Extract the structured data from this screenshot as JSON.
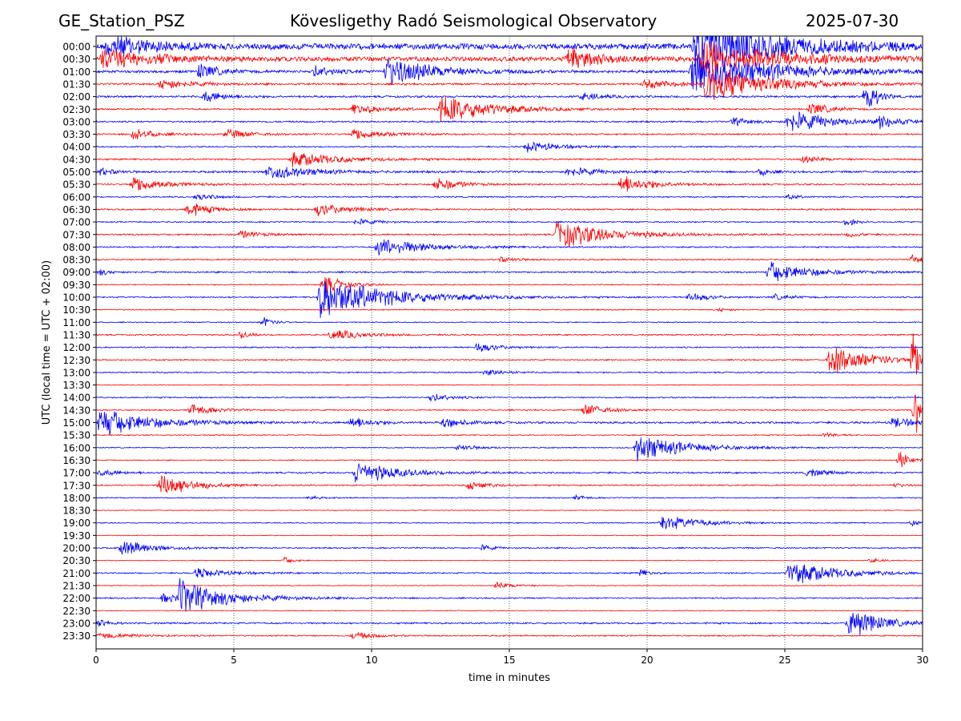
{
  "header": {
    "station": "GE_Station_PSZ",
    "observatory": "Kövesligethy Radó Seismological Observatory",
    "date": "2025-07-30"
  },
  "chart_data": {
    "type": "line",
    "title": "Kövesligethy Radó Seismological Observatory",
    "xlabel": "time in minutes",
    "ylabel": "UTC (local time = UTC + 02:00)",
    "xlim": [
      0,
      30
    ],
    "xticks": [
      "0",
      "5",
      "10",
      "15",
      "20",
      "25",
      "30"
    ],
    "grid": "vertical dotted lines at each x tick",
    "colors": {
      "odd_row": "#0000ff",
      "even_row": "#ff0000"
    },
    "rows": [
      {
        "label": "00:00",
        "color": "blue",
        "amp": 0.45,
        "events": [
          {
            "t": 0.3,
            "a": 2.0,
            "d": 4
          },
          {
            "t": 21.6,
            "a": 4.0,
            "d": 8.4
          }
        ]
      },
      {
        "label": "00:30",
        "color": "red",
        "amp": 0.35,
        "events": [
          {
            "t": 0.1,
            "a": 1.6,
            "d": 5
          },
          {
            "t": 17.0,
            "a": 1.8,
            "d": 3
          },
          {
            "t": 21.8,
            "a": 2.5,
            "d": 8
          }
        ]
      },
      {
        "label": "01:00",
        "color": "blue",
        "amp": 0.2,
        "events": [
          {
            "t": 3.6,
            "a": 1.2,
            "d": 2
          },
          {
            "t": 7.8,
            "a": 0.8,
            "d": 2
          },
          {
            "t": 10.4,
            "a": 2.2,
            "d": 5
          },
          {
            "t": 21.5,
            "a": 3.2,
            "d": 8
          }
        ]
      },
      {
        "label": "01:30",
        "color": "red",
        "amp": 0.15,
        "events": [
          {
            "t": 2.2,
            "a": 0.8,
            "d": 3
          },
          {
            "t": 19.8,
            "a": 0.7,
            "d": 3
          },
          {
            "t": 22.0,
            "a": 3.0,
            "d": 6
          }
        ]
      },
      {
        "label": "02:00",
        "color": "blue",
        "amp": 0.15,
        "events": [
          {
            "t": 3.8,
            "a": 0.9,
            "d": 2
          },
          {
            "t": 17.5,
            "a": 0.6,
            "d": 2
          },
          {
            "t": 27.8,
            "a": 3.0,
            "d": 1
          }
        ]
      },
      {
        "label": "02:30",
        "color": "red",
        "amp": 0.12,
        "events": [
          {
            "t": 9.2,
            "a": 0.8,
            "d": 3
          },
          {
            "t": 12.4,
            "a": 2.2,
            "d": 5
          },
          {
            "t": 25.8,
            "a": 1.0,
            "d": 2
          }
        ]
      },
      {
        "label": "03:00",
        "color": "blue",
        "amp": 0.12,
        "events": [
          {
            "t": 23.0,
            "a": 0.6,
            "d": 2
          },
          {
            "t": 25.0,
            "a": 1.8,
            "d": 4
          },
          {
            "t": 28.3,
            "a": 1.0,
            "d": 2
          }
        ]
      },
      {
        "label": "03:30",
        "color": "red",
        "amp": 0.12,
        "events": [
          {
            "t": 1.2,
            "a": 0.9,
            "d": 2
          },
          {
            "t": 4.6,
            "a": 0.8,
            "d": 2
          },
          {
            "t": 9.2,
            "a": 0.9,
            "d": 3
          }
        ]
      },
      {
        "label": "04:00",
        "color": "blue",
        "amp": 0.1,
        "events": [
          {
            "t": 15.5,
            "a": 0.9,
            "d": 3
          }
        ]
      },
      {
        "label": "04:30",
        "color": "red",
        "amp": 0.12,
        "events": [
          {
            "t": 7.0,
            "a": 1.1,
            "d": 5
          },
          {
            "t": 25.5,
            "a": 0.5,
            "d": 2
          }
        ]
      },
      {
        "label": "05:00",
        "color": "blue",
        "amp": 0.15,
        "events": [
          {
            "t": 0.0,
            "a": 0.6,
            "d": 1.5
          },
          {
            "t": 6.1,
            "a": 1.2,
            "d": 4
          },
          {
            "t": 17.0,
            "a": 0.7,
            "d": 3
          },
          {
            "t": 24.0,
            "a": 0.6,
            "d": 1
          }
        ]
      },
      {
        "label": "05:30",
        "color": "red",
        "amp": 0.12,
        "events": [
          {
            "t": 1.2,
            "a": 1.3,
            "d": 3
          },
          {
            "t": 12.2,
            "a": 1.2,
            "d": 2
          },
          {
            "t": 18.9,
            "a": 1.4,
            "d": 3
          }
        ]
      },
      {
        "label": "06:00",
        "color": "blue",
        "amp": 0.1,
        "events": [
          {
            "t": 3.5,
            "a": 0.5,
            "d": 2
          },
          {
            "t": 25.0,
            "a": 0.4,
            "d": 1
          }
        ]
      },
      {
        "label": "06:30",
        "color": "red",
        "amp": 0.12,
        "events": [
          {
            "t": 3.2,
            "a": 1.3,
            "d": 2
          },
          {
            "t": 7.9,
            "a": 1.0,
            "d": 3
          }
        ]
      },
      {
        "label": "07:00",
        "color": "blue",
        "amp": 0.1,
        "events": [
          {
            "t": 9.3,
            "a": 0.5,
            "d": 2
          },
          {
            "t": 27.1,
            "a": 0.6,
            "d": 1
          }
        ]
      },
      {
        "label": "07:30",
        "color": "red",
        "amp": 0.12,
        "events": [
          {
            "t": 5.1,
            "a": 0.6,
            "d": 2
          },
          {
            "t": 16.6,
            "a": 2.2,
            "d": 5
          },
          {
            "t": 27.2,
            "a": 0.5,
            "d": 1
          }
        ]
      },
      {
        "label": "08:00",
        "color": "blue",
        "amp": 0.1,
        "events": [
          {
            "t": 10.1,
            "a": 1.4,
            "d": 5
          }
        ]
      },
      {
        "label": "08:30",
        "color": "red",
        "amp": 0.1,
        "events": [
          {
            "t": 14.5,
            "a": 0.4,
            "d": 2
          },
          {
            "t": 29.5,
            "a": 0.8,
            "d": 1
          }
        ]
      },
      {
        "label": "09:00",
        "color": "blue",
        "amp": 0.12,
        "events": [
          {
            "t": 0.0,
            "a": 0.5,
            "d": 1
          },
          {
            "t": 24.3,
            "a": 1.6,
            "d": 4
          }
        ]
      },
      {
        "label": "09:30",
        "color": "red",
        "amp": 0.08,
        "events": [
          {
            "t": 8.1,
            "a": 1.5,
            "d": 2
          }
        ]
      },
      {
        "label": "10:00",
        "color": "blue",
        "amp": 0.1,
        "events": [
          {
            "t": 8.0,
            "a": 3.2,
            "d": 7
          },
          {
            "t": 21.4,
            "a": 0.7,
            "d": 2
          },
          {
            "t": 24.5,
            "a": 0.4,
            "d": 2
          }
        ]
      },
      {
        "label": "10:30",
        "color": "red",
        "amp": 0.08,
        "events": [
          {
            "t": 22.5,
            "a": 0.3,
            "d": 1
          }
        ]
      },
      {
        "label": "11:00",
        "color": "blue",
        "amp": 0.08,
        "events": [
          {
            "t": 5.9,
            "a": 0.8,
            "d": 1
          }
        ]
      },
      {
        "label": "11:30",
        "color": "red",
        "amp": 0.1,
        "events": [
          {
            "t": 5.1,
            "a": 0.6,
            "d": 1
          },
          {
            "t": 8.4,
            "a": 0.9,
            "d": 3
          }
        ]
      },
      {
        "label": "12:00",
        "color": "blue",
        "amp": 0.1,
        "events": [
          {
            "t": 13.7,
            "a": 0.8,
            "d": 2
          }
        ]
      },
      {
        "label": "12:30",
        "color": "red",
        "amp": 0.1,
        "events": [
          {
            "t": 26.5,
            "a": 2.2,
            "d": 4
          },
          {
            "t": 29.5,
            "a": 5.0,
            "d": 0.6
          }
        ]
      },
      {
        "label": "13:00",
        "color": "blue",
        "amp": 0.1,
        "events": [
          {
            "t": 14.0,
            "a": 0.5,
            "d": 2
          }
        ]
      },
      {
        "label": "13:30",
        "color": "red",
        "amp": 0.06,
        "events": []
      },
      {
        "label": "14:00",
        "color": "blue",
        "amp": 0.1,
        "events": [
          {
            "t": 12.0,
            "a": 0.6,
            "d": 2
          }
        ]
      },
      {
        "label": "14:30",
        "color": "red",
        "amp": 0.1,
        "events": [
          {
            "t": 3.3,
            "a": 1.0,
            "d": 2
          },
          {
            "t": 17.6,
            "a": 1.0,
            "d": 2
          },
          {
            "t": 29.6,
            "a": 4.0,
            "d": 0.4
          }
        ]
      },
      {
        "label": "15:00",
        "color": "blue",
        "amp": 0.15,
        "events": [
          {
            "t": 0.0,
            "a": 2.2,
            "d": 5
          },
          {
            "t": 9.1,
            "a": 0.9,
            "d": 2
          },
          {
            "t": 12.5,
            "a": 0.8,
            "d": 2
          },
          {
            "t": 28.8,
            "a": 0.9,
            "d": 2
          }
        ]
      },
      {
        "label": "15:30",
        "color": "red",
        "amp": 0.08,
        "events": [
          {
            "t": 26.3,
            "a": 0.5,
            "d": 1
          }
        ]
      },
      {
        "label": "16:00",
        "color": "blue",
        "amp": 0.08,
        "events": [
          {
            "t": 19.5,
            "a": 2.0,
            "d": 5
          },
          {
            "t": 13.0,
            "a": 0.5,
            "d": 2
          }
        ]
      },
      {
        "label": "16:30",
        "color": "red",
        "amp": 0.08,
        "events": [
          {
            "t": 29.0,
            "a": 1.6,
            "d": 1
          }
        ]
      },
      {
        "label": "17:00",
        "color": "blue",
        "amp": 0.12,
        "events": [
          {
            "t": 0.0,
            "a": 0.5,
            "d": 2
          },
          {
            "t": 9.3,
            "a": 1.8,
            "d": 4
          },
          {
            "t": 25.7,
            "a": 0.6,
            "d": 2
          }
        ]
      },
      {
        "label": "17:30",
        "color": "red",
        "amp": 0.1,
        "events": [
          {
            "t": 2.2,
            "a": 2.0,
            "d": 3
          },
          {
            "t": 13.4,
            "a": 0.7,
            "d": 2
          },
          {
            "t": 28.8,
            "a": 0.4,
            "d": 1
          }
        ]
      },
      {
        "label": "18:00",
        "color": "blue",
        "amp": 0.08,
        "events": [
          {
            "t": 7.6,
            "a": 0.3,
            "d": 1
          },
          {
            "t": 17.3,
            "a": 0.4,
            "d": 1
          }
        ]
      },
      {
        "label": "18:30",
        "color": "red",
        "amp": 0.06,
        "events": []
      },
      {
        "label": "19:00",
        "color": "blue",
        "amp": 0.08,
        "events": [
          {
            "t": 20.4,
            "a": 1.2,
            "d": 4
          },
          {
            "t": 29.5,
            "a": 0.6,
            "d": 0.5
          }
        ]
      },
      {
        "label": "19:30",
        "color": "red",
        "amp": 0.06,
        "events": []
      },
      {
        "label": "20:00",
        "color": "blue",
        "amp": 0.1,
        "events": [
          {
            "t": 0.8,
            "a": 1.2,
            "d": 3
          },
          {
            "t": 13.9,
            "a": 0.5,
            "d": 1
          }
        ]
      },
      {
        "label": "20:30",
        "color": "red",
        "amp": 0.06,
        "events": [
          {
            "t": 6.7,
            "a": 0.5,
            "d": 1
          },
          {
            "t": 28.0,
            "a": 0.4,
            "d": 1
          }
        ]
      },
      {
        "label": "21:00",
        "color": "blue",
        "amp": 0.1,
        "events": [
          {
            "t": 3.5,
            "a": 0.8,
            "d": 3
          },
          {
            "t": 19.6,
            "a": 0.6,
            "d": 1
          },
          {
            "t": 25.0,
            "a": 1.8,
            "d": 5
          }
        ]
      },
      {
        "label": "21:30",
        "color": "red",
        "amp": 0.06,
        "events": [
          {
            "t": 14.4,
            "a": 0.5,
            "d": 2
          }
        ]
      },
      {
        "label": "22:00",
        "color": "blue",
        "amp": 0.1,
        "events": [
          {
            "t": 2.3,
            "a": 0.8,
            "d": 2
          },
          {
            "t": 2.9,
            "a": 2.5,
            "d": 5
          }
        ]
      },
      {
        "label": "22:30",
        "color": "red",
        "amp": 0.06,
        "events": []
      },
      {
        "label": "23:00",
        "color": "blue",
        "amp": 0.12,
        "events": [
          {
            "t": 0.0,
            "a": 0.6,
            "d": 1
          },
          {
            "t": 27.2,
            "a": 2.6,
            "d": 3
          }
        ]
      },
      {
        "label": "23:30",
        "color": "red",
        "amp": 0.1,
        "events": [
          {
            "t": 0.0,
            "a": 0.4,
            "d": 4
          },
          {
            "t": 9.2,
            "a": 0.6,
            "d": 2
          }
        ]
      }
    ]
  }
}
